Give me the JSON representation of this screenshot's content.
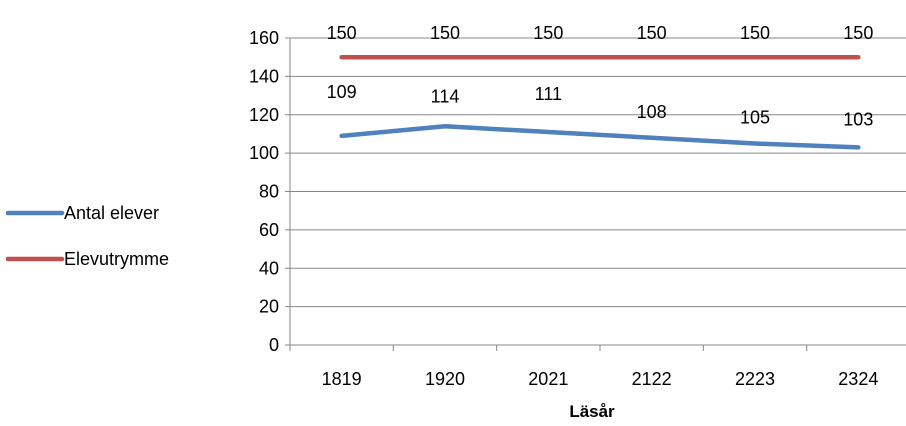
{
  "chart_data": {
    "type": "line",
    "categories": [
      "1819",
      "1920",
      "2021",
      "2122",
      "2223",
      "2324"
    ],
    "series": [
      {
        "name": "Antal elever",
        "values": [
          109,
          114,
          111,
          108,
          105,
          103
        ],
        "color": "#4F81BD"
      },
      {
        "name": "Elevutrymme",
        "values": [
          150,
          150,
          150,
          150,
          150,
          150
        ],
        "color": "#C0504D"
      }
    ],
    "title": "",
    "xlabel": "Läsår",
    "ylabel": "",
    "ylim": [
      0,
      160
    ],
    "yticks": [
      0,
      20,
      40,
      60,
      80,
      100,
      120,
      140,
      160
    ],
    "grid": true,
    "legend_position": "left",
    "data_labels": true
  }
}
